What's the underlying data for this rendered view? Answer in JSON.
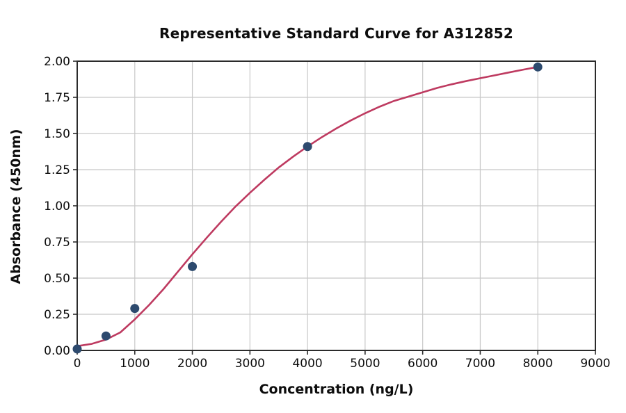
{
  "chart_data": {
    "type": "scatter",
    "title": "Representative Standard Curve for A312852",
    "xlabel": "Concentration (ng/L)",
    "ylabel": "Absorbance (450nm)",
    "xlim": [
      0,
      9000
    ],
    "ylim": [
      0,
      2.0
    ],
    "grid": true,
    "legend_position": "none",
    "xticks": [
      0,
      1000,
      2000,
      3000,
      4000,
      5000,
      6000,
      7000,
      8000,
      9000
    ],
    "xtick_labels": [
      "0",
      "1000",
      "2000",
      "3000",
      "4000",
      "5000",
      "6000",
      "7000",
      "8000",
      "9000"
    ],
    "yticks": [
      0,
      0.25,
      0.5,
      0.75,
      1.0,
      1.25,
      1.5,
      1.75,
      2.0
    ],
    "ytick_labels": [
      "0.00",
      "0.25",
      "0.50",
      "0.75",
      "1.00",
      "1.25",
      "1.50",
      "1.75",
      "2.00"
    ],
    "points": [
      {
        "x": 0,
        "y": 0.01
      },
      {
        "x": 500,
        "y": 0.1
      },
      {
        "x": 1000,
        "y": 0.29
      },
      {
        "x": 2000,
        "y": 0.58
      },
      {
        "x": 4000,
        "y": 1.41
      },
      {
        "x": 8000,
        "y": 1.96
      }
    ],
    "fit_curve": [
      [
        0,
        0.03
      ],
      [
        250,
        0.045
      ],
      [
        500,
        0.075
      ],
      [
        750,
        0.125
      ],
      [
        1000,
        0.215
      ],
      [
        1250,
        0.315
      ],
      [
        1500,
        0.425
      ],
      [
        1750,
        0.545
      ],
      [
        2000,
        0.665
      ],
      [
        2250,
        0.78
      ],
      [
        2500,
        0.89
      ],
      [
        2750,
        0.995
      ],
      [
        3000,
        1.09
      ],
      [
        3250,
        1.18
      ],
      [
        3500,
        1.265
      ],
      [
        3750,
        1.34
      ],
      [
        4000,
        1.41
      ],
      [
        4250,
        1.475
      ],
      [
        4500,
        1.535
      ],
      [
        4750,
        1.59
      ],
      [
        5000,
        1.64
      ],
      [
        5250,
        1.685
      ],
      [
        5500,
        1.725
      ],
      [
        5750,
        1.755
      ],
      [
        6000,
        1.785
      ],
      [
        6250,
        1.815
      ],
      [
        6500,
        1.84
      ],
      [
        6750,
        1.862
      ],
      [
        7000,
        1.882
      ],
      [
        7250,
        1.902
      ],
      [
        7500,
        1.922
      ],
      [
        7750,
        1.942
      ],
      [
        8000,
        1.96
      ]
    ],
    "colors": {
      "curve": "#be3a60",
      "points": "#2d4a6e",
      "grid": "#c8c8c8",
      "axis": "#2b2b2b",
      "text": "#0d0d0d",
      "background": "#ffffff"
    }
  }
}
